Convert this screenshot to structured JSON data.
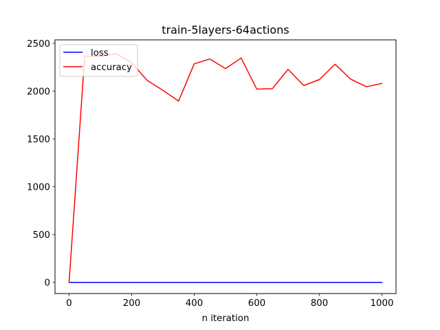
{
  "chart_data": {
    "type": "line",
    "title": "train-5layers-64actions",
    "xlabel": "n iteration",
    "ylabel": "",
    "xlim": [
      -45,
      1045
    ],
    "ylim": [
      -117,
      2535
    ],
    "xticks": [
      0,
      200,
      400,
      600,
      800,
      1000
    ],
    "yticks": [
      0,
      500,
      1000,
      1500,
      2000,
      2500
    ],
    "x": [
      0,
      50,
      100,
      150,
      200,
      250,
      300,
      350,
      400,
      450,
      500,
      550,
      600,
      650,
      700,
      750,
      800,
      850,
      900,
      950,
      1000
    ],
    "series": [
      {
        "name": "loss",
        "color": "#0000ff",
        "values": [
          0,
          0,
          0,
          0,
          0,
          0,
          0,
          0,
          0,
          0,
          0,
          0,
          0,
          0,
          0,
          0,
          0,
          0,
          0,
          0,
          0
        ]
      },
      {
        "name": "accuracy",
        "color": "#ff0000",
        "values": [
          0,
          2365,
          2360,
          2393,
          2295,
          2110,
          2008,
          1895,
          2285,
          2335,
          2235,
          2345,
          2020,
          2025,
          2227,
          2058,
          2120,
          2280,
          2125,
          2045,
          2080
        ]
      }
    ],
    "legend": "upper-left",
    "grid": false
  }
}
